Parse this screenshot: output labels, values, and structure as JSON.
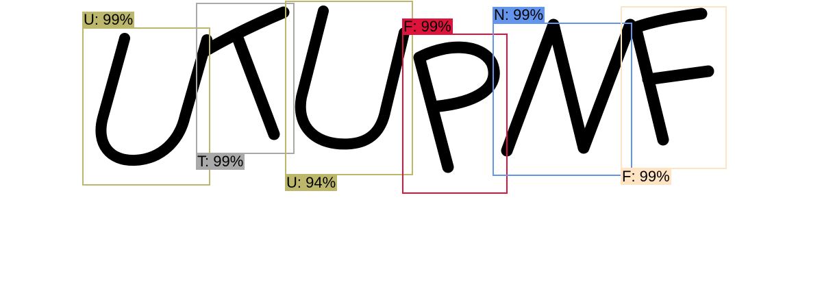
{
  "detections": [
    {
      "label": "U: 99%",
      "color": "#bdb76b"
    },
    {
      "label": "T: 99%",
      "color": "#a9a9a9"
    },
    {
      "label": "U: 94%",
      "color": "#bdb76b"
    },
    {
      "label": "F: 99%",
      "color": "#dc143c"
    },
    {
      "label": "N: 99%",
      "color": "#6495ed"
    },
    {
      "label": "F: 99%",
      "color": "#ffe4c4"
    }
  ]
}
